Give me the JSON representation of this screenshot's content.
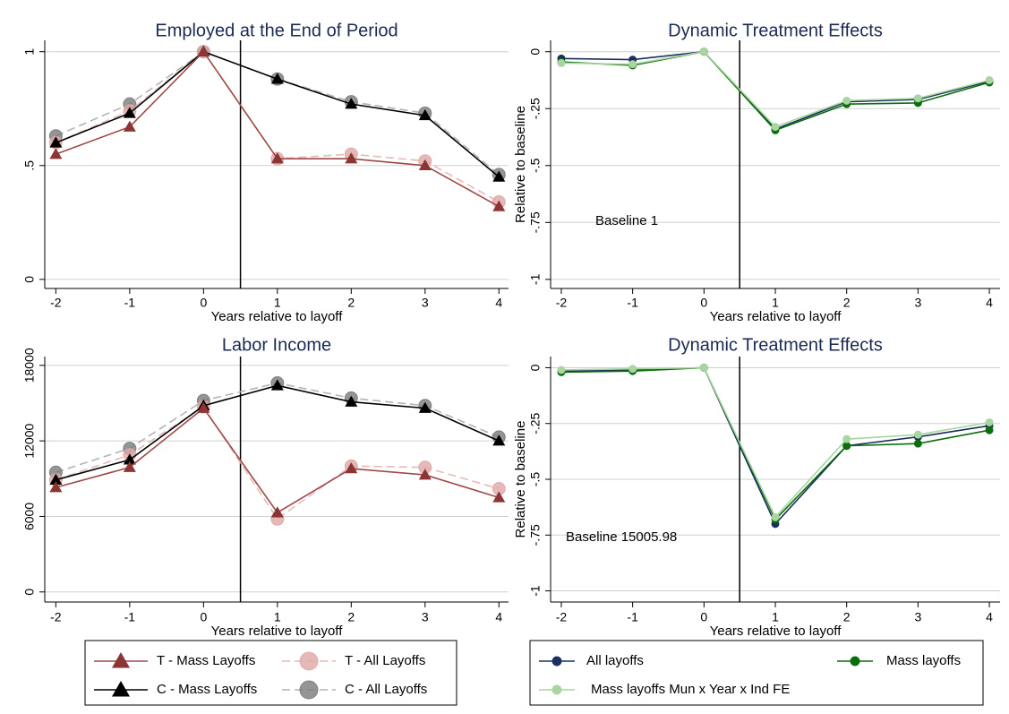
{
  "chart_data": [
    {
      "type": "line",
      "title": "Employed at the End of Period",
      "xlabel": "Years relative to layoff",
      "x": [
        -2,
        -1,
        0,
        1,
        2,
        3,
        4
      ],
      "xlim": [
        -2.15,
        4.13
      ],
      "xticks": [
        -2,
        -1,
        0,
        1,
        2,
        3,
        4
      ],
      "ylim": [
        -0.04,
        1.05
      ],
      "yticks": [
        0,
        {
          "value": 0.5,
          "label": ".5"
        },
        1
      ],
      "grid": true,
      "vline": 0.5,
      "series": [
        {
          "name": "C - All Layoffs",
          "color": "#7a7a7a",
          "line_color": "#b4b4b4",
          "marker": "circle",
          "dashed": true,
          "values": [
            0.63,
            0.77,
            1.0,
            0.88,
            0.78,
            0.73,
            0.46
          ]
        },
        {
          "name": "T - All Layoffs",
          "color": "#e0a8a8",
          "line_color": "#e6b9b9",
          "marker": "circle",
          "dashed": true,
          "values": [
            0.6,
            0.74,
            1.0,
            0.53,
            0.55,
            0.52,
            0.34
          ]
        },
        {
          "name": "C - Mass Layoffs",
          "color": "#000000",
          "line_color": "#000000",
          "marker": "triangle",
          "dashed": false,
          "values": [
            0.6,
            0.73,
            1.0,
            0.88,
            0.77,
            0.72,
            0.45
          ]
        },
        {
          "name": "T - Mass Layoffs",
          "color": "#8b3535",
          "line_color": "#a04848",
          "marker": "triangle",
          "dashed": false,
          "values": [
            0.55,
            0.67,
            1.0,
            0.53,
            0.53,
            0.5,
            0.32
          ]
        }
      ]
    },
    {
      "type": "line",
      "title": "Dynamic Treatment Effects",
      "xlabel": "Years relative to layoff",
      "ylabel": "Relative to baseline",
      "annotation": "Baseline 1",
      "x": [
        -2,
        -1,
        0,
        1,
        2,
        3,
        4
      ],
      "xlim": [
        -2.15,
        4.15
      ],
      "xticks": [
        -2,
        -1,
        0,
        1,
        2,
        3,
        4
      ],
      "ylim": [
        -1.04,
        0.05
      ],
      "yticks": [
        0,
        {
          "value": -0.25,
          "label": "-.25"
        },
        {
          "value": -0.5,
          "label": "-.5"
        },
        {
          "value": -0.75,
          "label": "-.75"
        },
        -1
      ],
      "grid": true,
      "vline": 0.5,
      "series": [
        {
          "name": "All layoffs",
          "color": "#1a2f5e",
          "line_color": "#1a2f5e",
          "marker": "circle",
          "dashed": false,
          "values": [
            -0.03,
            -0.035,
            0,
            -0.34,
            -0.22,
            -0.21,
            -0.13
          ]
        },
        {
          "name": "Mass layoffs",
          "color": "#0a6e0a",
          "line_color": "#0a6e0a",
          "marker": "circle",
          "dashed": false,
          "values": [
            -0.045,
            -0.06,
            0,
            -0.345,
            -0.23,
            -0.225,
            -0.135
          ]
        },
        {
          "name": "Mass layoffs Mun x Year x Ind FE",
          "color": "#a8d5a0",
          "line_color": "#a8d5a0",
          "marker": "circle",
          "dashed": false,
          "values": [
            -0.05,
            -0.055,
            0,
            -0.33,
            -0.215,
            -0.205,
            -0.125
          ]
        }
      ]
    },
    {
      "type": "line",
      "title": "Labor Income",
      "xlabel": "Years relative to layoff",
      "x": [
        -2,
        -1,
        0,
        1,
        2,
        3,
        4
      ],
      "xlim": [
        -2.15,
        4.13
      ],
      "xticks": [
        -2,
        -1,
        0,
        1,
        2,
        3,
        4
      ],
      "ylim": [
        -800,
        18700
      ],
      "yticks": [
        0,
        6000,
        12000,
        18000
      ],
      "grid": true,
      "vline": 0.5,
      "series": [
        {
          "color": "#7a7a7a",
          "line_color": "#b4b4b4",
          "marker": "circle",
          "dashed": true,
          "values": [
            9500,
            11400,
            15200,
            16600,
            15400,
            14800,
            12300
          ]
        },
        {
          "color": "#e0a8a8",
          "line_color": "#e6b9b9",
          "marker": "circle",
          "dashed": true,
          "values": [
            8900,
            10900,
            14700,
            5800,
            10000,
            9900,
            8200
          ]
        },
        {
          "color": "#000000",
          "line_color": "#000000",
          "marker": "triangle",
          "dashed": false,
          "values": [
            8900,
            10500,
            14800,
            16400,
            15100,
            14600,
            12000
          ]
        },
        {
          "color": "#8b3535",
          "line_color": "#a04848",
          "marker": "triangle",
          "dashed": false,
          "values": [
            8300,
            9900,
            14600,
            6300,
            9800,
            9300,
            7500
          ]
        }
      ]
    },
    {
      "type": "line",
      "title": "Dynamic Treatment Effects",
      "xlabel": "Years relative to layoff",
      "ylabel": "Relative to baseline",
      "annotation": "Baseline 15005.98",
      "x": [
        -2,
        -1,
        0,
        1,
        2,
        3,
        4
      ],
      "xlim": [
        -2.15,
        4.15
      ],
      "xticks": [
        -2,
        -1,
        0,
        1,
        2,
        3,
        4
      ],
      "ylim": [
        -1.05,
        0.05
      ],
      "yticks": [
        0,
        {
          "value": -0.25,
          "label": "-.25"
        },
        {
          "value": -0.5,
          "label": "-.5"
        },
        {
          "value": -0.75,
          "label": "-.75"
        },
        -1
      ],
      "grid": true,
      "vline": 0.5,
      "series": [
        {
          "color": "#1a2f5e",
          "line_color": "#1a2f5e",
          "marker": "circle",
          "dashed": false,
          "values": [
            -0.015,
            -0.01,
            0,
            -0.7,
            -0.35,
            -0.31,
            -0.26
          ]
        },
        {
          "color": "#0a6e0a",
          "line_color": "#0a6e0a",
          "marker": "circle",
          "dashed": false,
          "values": [
            -0.02,
            -0.015,
            0,
            -0.68,
            -0.35,
            -0.34,
            -0.28
          ]
        },
        {
          "color": "#a8d5a0",
          "line_color": "#a8d5a0",
          "marker": "circle",
          "dashed": false,
          "values": [
            -0.01,
            -0.005,
            0,
            -0.67,
            -0.32,
            -0.3,
            -0.245
          ]
        }
      ]
    }
  ]
}
